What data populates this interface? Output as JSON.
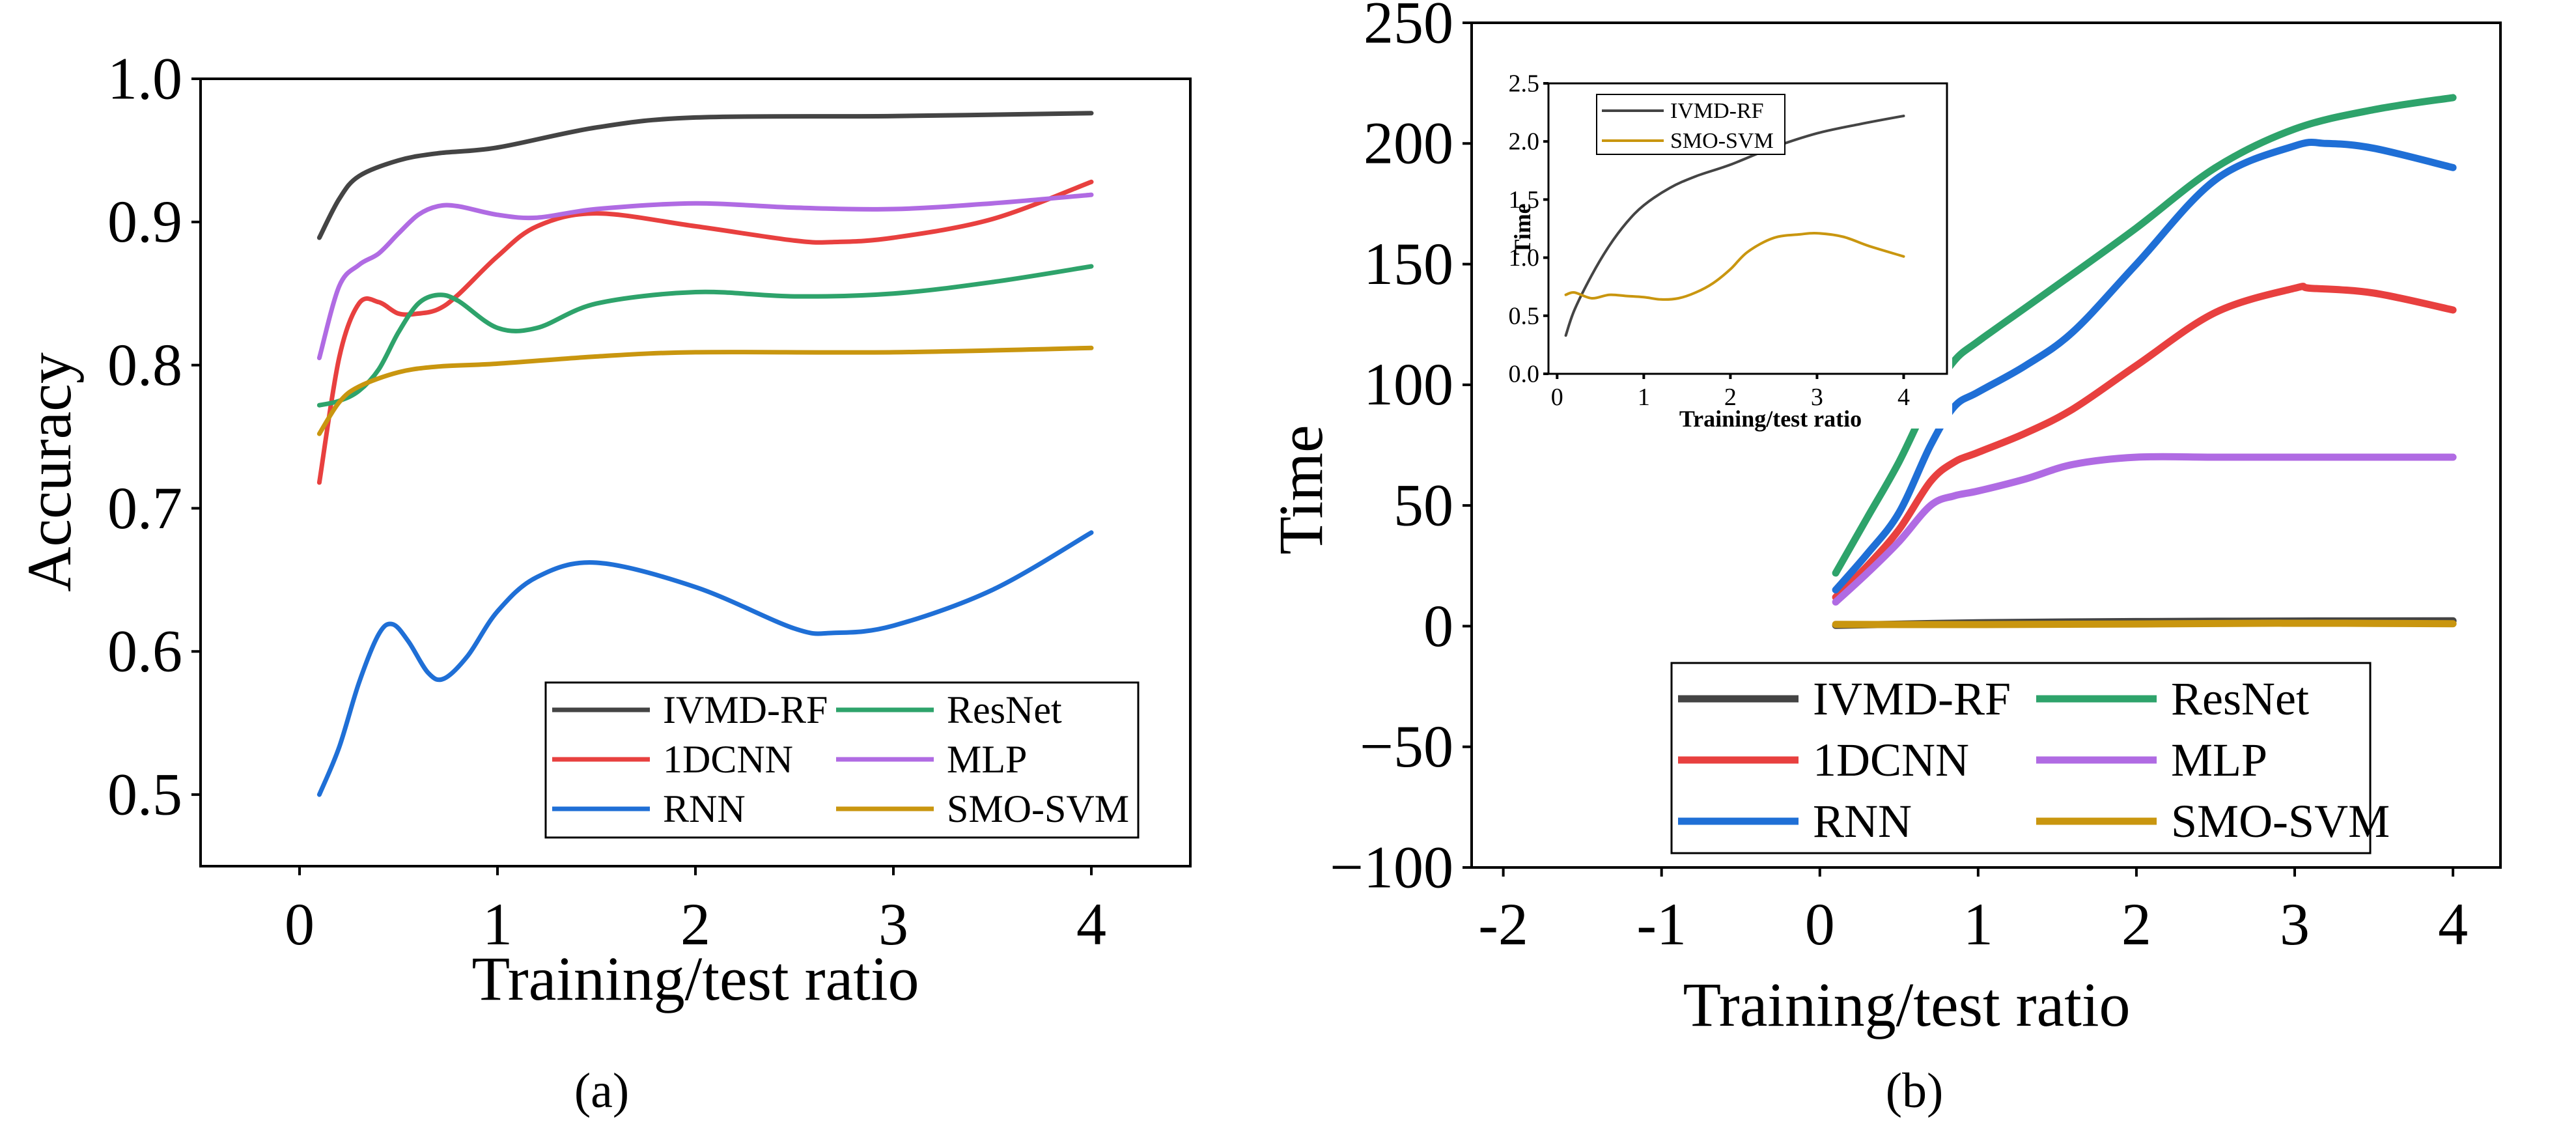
{
  "chart_data": [
    {
      "id": "a",
      "type": "line",
      "panel_label": "(a)",
      "xlabel": "Training/test ratio",
      "ylabel": "Accuracy",
      "xlim": [
        -0.5,
        4.5
      ],
      "ylim": [
        0.45,
        1.0
      ],
      "xticks": [
        0,
        1,
        2,
        3,
        4
      ],
      "xtick_labels": [
        "0",
        "1",
        "2",
        "3",
        "4"
      ],
      "yticks": [
        0.5,
        0.6,
        0.7,
        0.8,
        0.9,
        1.0
      ],
      "ytick_labels": [
        "0.5",
        "0.6",
        "0.7",
        "0.8",
        "0.9",
        "1.0"
      ],
      "legend_position": "bottom-right",
      "grid": false,
      "series": [
        {
          "name": "IVMD-RF",
          "color": "#444444",
          "x": [
            0.1,
            0.2,
            0.3,
            0.5,
            0.7,
            1.0,
            1.5,
            2.0,
            3.0,
            4.0
          ],
          "y": [
            0.889,
            0.916,
            0.932,
            0.943,
            0.948,
            0.952,
            0.966,
            0.973,
            0.974,
            0.976
          ]
        },
        {
          "name": "1DCNN",
          "color": "#e8403f",
          "x": [
            0.1,
            0.2,
            0.3,
            0.4,
            0.5,
            0.6,
            0.7,
            0.8,
            1.0,
            1.2,
            1.5,
            2.0,
            2.5,
            2.7,
            3.0,
            3.5,
            4.0
          ],
          "y": [
            0.718,
            0.805,
            0.843,
            0.844,
            0.836,
            0.836,
            0.839,
            0.849,
            0.876,
            0.897,
            0.906,
            0.897,
            0.887,
            0.886,
            0.889,
            0.902,
            0.928
          ]
        },
        {
          "name": "RNN",
          "color": "#1f6fd6",
          "x": [
            0.1,
            0.2,
            0.3,
            0.4,
            0.47,
            0.55,
            0.65,
            0.73,
            0.85,
            1.0,
            1.2,
            1.5,
            2.0,
            2.5,
            2.7,
            3.0,
            3.5,
            4.0
          ],
          "y": [
            0.5,
            0.533,
            0.578,
            0.612,
            0.619,
            0.607,
            0.585,
            0.581,
            0.597,
            0.628,
            0.652,
            0.662,
            0.645,
            0.616,
            0.613,
            0.618,
            0.643,
            0.683
          ]
        },
        {
          "name": "ResNet",
          "color": "#2ea36b",
          "x": [
            0.1,
            0.2,
            0.3,
            0.4,
            0.5,
            0.6,
            0.7,
            0.8,
            1.0,
            1.2,
            1.5,
            2.0,
            2.5,
            3.0,
            3.5,
            4.0
          ],
          "y": [
            0.772,
            0.775,
            0.782,
            0.797,
            0.823,
            0.843,
            0.849,
            0.845,
            0.826,
            0.826,
            0.843,
            0.851,
            0.848,
            0.85,
            0.858,
            0.869
          ]
        },
        {
          "name": "MLP",
          "color": "#b06be3",
          "x": [
            0.1,
            0.2,
            0.3,
            0.4,
            0.5,
            0.6,
            0.7,
            0.8,
            1.0,
            1.2,
            1.5,
            2.0,
            2.5,
            3.0,
            3.5,
            4.0
          ],
          "y": [
            0.805,
            0.855,
            0.87,
            0.878,
            0.892,
            0.905,
            0.911,
            0.911,
            0.905,
            0.903,
            0.909,
            0.913,
            0.91,
            0.909,
            0.913,
            0.919
          ]
        },
        {
          "name": "SMO-SVM",
          "color": "#c9960f",
          "x": [
            0.1,
            0.2,
            0.3,
            0.5,
            0.7,
            1.0,
            1.5,
            2.0,
            3.0,
            4.0
          ],
          "y": [
            0.752,
            0.774,
            0.785,
            0.795,
            0.799,
            0.801,
            0.806,
            0.809,
            0.809,
            0.812
          ]
        }
      ]
    },
    {
      "id": "b",
      "type": "line",
      "panel_label": "(b)",
      "xlabel": "Training/test ratio",
      "ylabel": "Time",
      "xlim": [
        -2.2,
        4.3
      ],
      "ylim": [
        -100,
        250
      ],
      "xticks": [
        -2,
        -1,
        0,
        1,
        2,
        3,
        4
      ],
      "xtick_labels": [
        "-2",
        "-1",
        "0",
        "1",
        "2",
        "3",
        "4"
      ],
      "yticks": [
        -100,
        -50,
        0,
        50,
        100,
        150,
        200,
        250
      ],
      "ytick_labels": [
        "−100",
        "−50",
        "0",
        "50",
        "100",
        "150",
        "200",
        "250"
      ],
      "legend_position": "bottom",
      "grid": false,
      "series": [
        {
          "name": "IVMD-RF",
          "color": "#444444",
          "x": [
            0.1,
            1.0,
            2.0,
            3.0,
            4.0
          ],
          "y": [
            0.3,
            1.4,
            1.9,
            2.1,
            2.2
          ]
        },
        {
          "name": "1DCNN",
          "color": "#e8403f",
          "x": [
            0.1,
            0.3,
            0.5,
            0.7,
            0.85,
            1.0,
            1.3,
            1.6,
            2.0,
            2.5,
            3.0,
            3.1,
            3.5,
            4.0
          ],
          "y": [
            12,
            25,
            40,
            60,
            68,
            72,
            80,
            90,
            108,
            130,
            140,
            140,
            138,
            131
          ]
        },
        {
          "name": "RNN",
          "color": "#1f6fd6",
          "x": [
            0.1,
            0.3,
            0.5,
            0.7,
            0.85,
            1.0,
            1.3,
            1.6,
            2.0,
            2.5,
            3.0,
            3.2,
            3.5,
            4.0
          ],
          "y": [
            15,
            30,
            47,
            75,
            91,
            97,
            108,
            122,
            150,
            185,
            199,
            200,
            198,
            190
          ]
        },
        {
          "name": "ResNet",
          "color": "#2ea36b",
          "x": [
            0.1,
            0.3,
            0.5,
            0.7,
            0.85,
            1.0,
            1.3,
            1.6,
            2.0,
            2.5,
            3.0,
            3.5,
            4.0
          ],
          "y": [
            22,
            45,
            68,
            95,
            110,
            118,
            132,
            146,
            165,
            190,
            206,
            214,
            219
          ]
        },
        {
          "name": "MLP",
          "color": "#b06be3",
          "x": [
            0.1,
            0.3,
            0.5,
            0.7,
            0.85,
            1.0,
            1.3,
            1.6,
            2.0,
            2.5,
            3.0,
            3.5,
            4.0
          ],
          "y": [
            10,
            22,
            35,
            50,
            54,
            56,
            61,
            67,
            70,
            70,
            70,
            70,
            70
          ]
        },
        {
          "name": "SMO-SVM",
          "color": "#c9960f",
          "x": [
            0.1,
            1.0,
            2.0,
            2.8,
            3.0,
            3.5,
            4.0
          ],
          "y": [
            0.7,
            0.65,
            0.9,
            1.2,
            1.2,
            1.15,
            1.0
          ]
        }
      ],
      "inset": {
        "type": "line",
        "xlabel": "Training/test ratio",
        "ylabel": "Time",
        "xlim": [
          -0.1,
          4.5
        ],
        "ylim": [
          0.0,
          2.5
        ],
        "xticks": [
          0,
          1,
          2,
          3,
          4
        ],
        "xtick_labels": [
          "0",
          "1",
          "2",
          "3",
          "4"
        ],
        "yticks": [
          0.0,
          0.5,
          1.0,
          1.5,
          2.0,
          2.5
        ],
        "ytick_labels": [
          "0.0",
          "0.5",
          "1.0",
          "1.5",
          "2.0",
          "2.5"
        ],
        "legend_position": "top-left",
        "series": [
          {
            "name": "IVMD-RF",
            "color": "#444444",
            "x": [
              0.1,
              0.2,
              0.4,
              0.6,
              0.8,
              1.0,
              1.3,
              1.6,
              2.0,
              2.5,
              3.0,
              3.5,
              4.0
            ],
            "y": [
              0.33,
              0.55,
              0.85,
              1.1,
              1.3,
              1.45,
              1.6,
              1.7,
              1.8,
              1.95,
              2.07,
              2.15,
              2.22
            ]
          },
          {
            "name": "SMO-SVM",
            "color": "#c9960f",
            "x": [
              0.1,
              0.2,
              0.4,
              0.6,
              0.8,
              1.0,
              1.2,
              1.4,
              1.6,
              1.8,
              2.0,
              2.2,
              2.5,
              2.8,
              3.0,
              3.3,
              3.6,
              4.0
            ],
            "y": [
              0.68,
              0.7,
              0.65,
              0.68,
              0.67,
              0.66,
              0.64,
              0.65,
              0.7,
              0.78,
              0.9,
              1.05,
              1.17,
              1.2,
              1.21,
              1.18,
              1.1,
              1.01
            ]
          }
        ]
      }
    }
  ]
}
